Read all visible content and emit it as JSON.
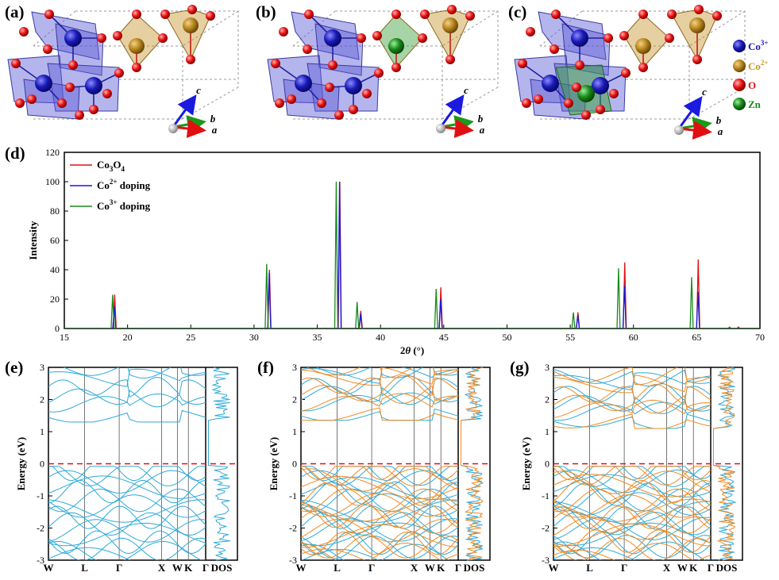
{
  "panels": {
    "a": "(a)",
    "b": "(b)",
    "c": "(c)",
    "d": "(d)",
    "e": "(e)",
    "f": "(f)",
    "g": "(g)"
  },
  "structure": {
    "axes": {
      "a": "a",
      "b": "b",
      "c": "c"
    },
    "legend": [
      {
        "label": "Co",
        "sup": "3+",
        "color": "#1a1aaa"
      },
      {
        "label": "Co",
        "sup": "2+",
        "color": "#c8961e"
      },
      {
        "label": "O",
        "sup": "",
        "color": "#e01010"
      },
      {
        "label": "Zn",
        "sup": "",
        "color": "#1a8a1a"
      }
    ],
    "colors": {
      "octahedron": "#5a5ad6",
      "tetra_co": "#c8962e",
      "tetra_zn": "#3aa03a",
      "co3": "#1a1aaa",
      "co2": "#b8861e",
      "o": "#e01010",
      "zn": "#1a8a1a"
    }
  },
  "chart_data": [
    {
      "id": "xrd",
      "type": "line",
      "xlabel_pre": "2",
      "xlabel_theta": "θ",
      "xlabel_post": " (°)",
      "ylabel": "Intensity",
      "xlim": [
        15,
        70
      ],
      "ylim": [
        0,
        120
      ],
      "xticks": [
        15,
        20,
        25,
        30,
        35,
        40,
        45,
        50,
        55,
        60,
        65,
        70
      ],
      "yticks": [
        0,
        20,
        40,
        60,
        80,
        100,
        120
      ],
      "series": [
        {
          "name": "Co",
          "sub": "3",
          "mid": "O",
          "sub2": "4",
          "legend_plain": "Co3O4",
          "color": "#e01010",
          "peaks": [
            [
              18.98,
              23
            ],
            [
              31.22,
              40
            ],
            [
              36.78,
              100
            ],
            [
              38.44,
              12
            ],
            [
              44.77,
              28
            ],
            [
              55.61,
              11
            ],
            [
              59.31,
              45
            ],
            [
              65.12,
              47
            ],
            [
              68.3,
              1
            ]
          ]
        },
        {
          "name": "Co",
          "sup": "2+",
          "tail": " doping",
          "legend_plain": "Co2+ doping",
          "color": "#1a1ad2",
          "peaks": [
            [
              18.95,
              15
            ],
            [
              31.2,
              38
            ],
            [
              36.76,
              100
            ],
            [
              38.42,
              10
            ],
            [
              44.75,
              20
            ],
            [
              55.6,
              9
            ],
            [
              59.29,
              29
            ],
            [
              65.1,
              25
            ]
          ]
        },
        {
          "name": "Co",
          "sup": "3+",
          "tail": " doping",
          "legend_plain": "Co3+ doping",
          "color": "#1a8a1a",
          "peaks": [
            [
              18.82,
              23
            ],
            [
              31.0,
              44
            ],
            [
              36.5,
              100
            ],
            [
              38.15,
              18
            ],
            [
              44.4,
              27
            ],
            [
              55.25,
              11
            ],
            [
              58.82,
              41
            ],
            [
              64.6,
              35
            ],
            [
              67.6,
              1
            ]
          ]
        }
      ]
    },
    {
      "id": "band-e",
      "type": "line",
      "ylabel": "Energy (eV)",
      "ylim": [
        -3,
        3
      ],
      "yticks": [
        -3,
        -2,
        -1,
        0,
        1,
        2,
        3
      ],
      "kpoints": [
        "W",
        "L",
        "Γ",
        "X",
        "W",
        "K",
        "Γ"
      ],
      "dos_label": "DOS",
      "fermi_level": 0,
      "spin_colors": [
        "#2eaad8"
      ],
      "gap_bottom": 1.55
    },
    {
      "id": "band-f",
      "type": "line",
      "ylabel": "Energy (eV)",
      "ylim": [
        -3,
        3
      ],
      "yticks": [
        -3,
        -2,
        -1,
        0,
        1,
        2,
        3
      ],
      "kpoints": [
        "W",
        "L",
        "Γ",
        "X",
        "W",
        "K",
        "Γ"
      ],
      "dos_label": "DOS",
      "fermi_level": 0,
      "spin_colors": [
        "#2eaad8",
        "#f08a24"
      ],
      "gap_bottom": 1.6
    },
    {
      "id": "band-g",
      "type": "line",
      "ylabel": "Energy (eV)",
      "ylim": [
        -3,
        3
      ],
      "yticks": [
        -3,
        -2,
        -1,
        0,
        1,
        2,
        3
      ],
      "kpoints": [
        "W",
        "L",
        "Γ",
        "X",
        "W",
        "K",
        "Γ"
      ],
      "dos_label": "DOS",
      "fermi_level": 0,
      "spin_colors": [
        "#2eaad8",
        "#f08a24"
      ],
      "gap_bottom": 1.35
    }
  ]
}
